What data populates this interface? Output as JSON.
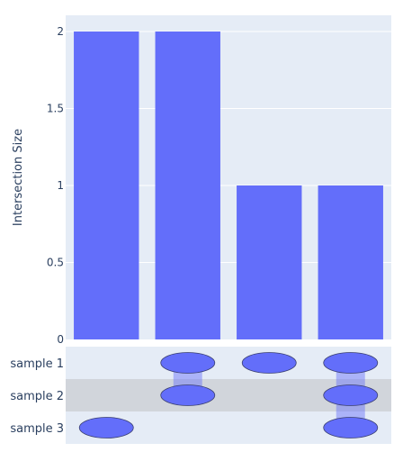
{
  "chart_data": {
    "type": "bar",
    "ylabel": "Intersection Size",
    "ylim": [
      0,
      2.0
    ],
    "yticks": [
      "0",
      "0.5",
      "1",
      "1.5",
      "2"
    ],
    "yticks_values": [
      0,
      0.5,
      1,
      1.5,
      2
    ],
    "values": [
      2,
      2,
      1,
      1
    ],
    "sets": [
      "sample 1",
      "sample 2",
      "sample 3"
    ],
    "membership": [
      [
        false,
        false,
        true
      ],
      [
        true,
        true,
        false
      ],
      [
        true,
        false,
        false
      ],
      [
        true,
        true,
        true
      ]
    ],
    "bar_color": "#636efa",
    "dot_color": "#636efa",
    "plot_bg": "#e5ecf6",
    "matrix_row_bg": [
      "#e5ecf6",
      "#d1d5db",
      "#e5ecf6"
    ],
    "grid": true
  }
}
